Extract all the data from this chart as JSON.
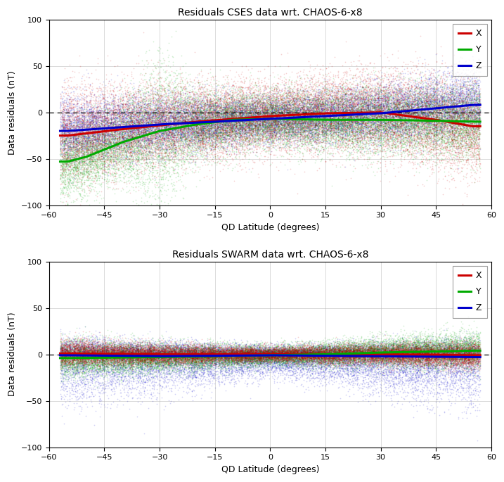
{
  "title_cses": "Residuals CSES data wrt. CHAOS-6-x8",
  "title_swarm": "Residuals SWARM data wrt. CHAOS-6-x8",
  "xlabel": "QD Latitude (degrees)",
  "ylabel": "Data residuals (nT)",
  "xlim": [
    -60,
    60
  ],
  "ylim": [
    -100,
    100
  ],
  "xticks": [
    -60,
    -45,
    -30,
    -15,
    0,
    15,
    30,
    45,
    60
  ],
  "yticks": [
    -100,
    -50,
    0,
    50,
    100
  ],
  "colors": {
    "X": "#cc0000",
    "Y": "#00aa00",
    "Z": "#0000cc"
  },
  "dot_alpha": 0.18,
  "dot_size": 1.5,
  "line_width": 2.2,
  "n_points": 20000,
  "seed": 42,
  "cses_x_ctrl": [
    [
      -55,
      -25
    ],
    [
      -40,
      -18
    ],
    [
      -20,
      -10
    ],
    [
      0,
      -4
    ],
    [
      15,
      -1
    ],
    [
      30,
      0
    ],
    [
      45,
      -8
    ],
    [
      55,
      -15
    ]
  ],
  "cses_y_ctrl": [
    [
      -55,
      -53
    ],
    [
      -50,
      -48
    ],
    [
      -40,
      -32
    ],
    [
      -30,
      -20
    ],
    [
      -20,
      -13
    ],
    [
      -10,
      -8
    ],
    [
      0,
      -7
    ],
    [
      15,
      -8
    ],
    [
      30,
      -8
    ],
    [
      45,
      -9
    ],
    [
      55,
      -10
    ]
  ],
  "cses_z_ctrl": [
    [
      -55,
      -20
    ],
    [
      -30,
      -13
    ],
    [
      0,
      -7
    ],
    [
      30,
      -1
    ],
    [
      55,
      8
    ]
  ],
  "swarm_x_ctrl": [
    [
      -55,
      1
    ],
    [
      -30,
      0
    ],
    [
      0,
      0
    ],
    [
      30,
      0
    ],
    [
      55,
      -1
    ]
  ],
  "swarm_y_ctrl": [
    [
      -55,
      -4
    ],
    [
      -30,
      -3
    ],
    [
      0,
      -1
    ],
    [
      15,
      0
    ],
    [
      30,
      2
    ],
    [
      45,
      3
    ],
    [
      55,
      4
    ]
  ],
  "swarm_z_ctrl": [
    [
      -55,
      -1
    ],
    [
      -30,
      -2
    ],
    [
      0,
      -1
    ],
    [
      30,
      -2
    ],
    [
      55,
      -3
    ]
  ]
}
